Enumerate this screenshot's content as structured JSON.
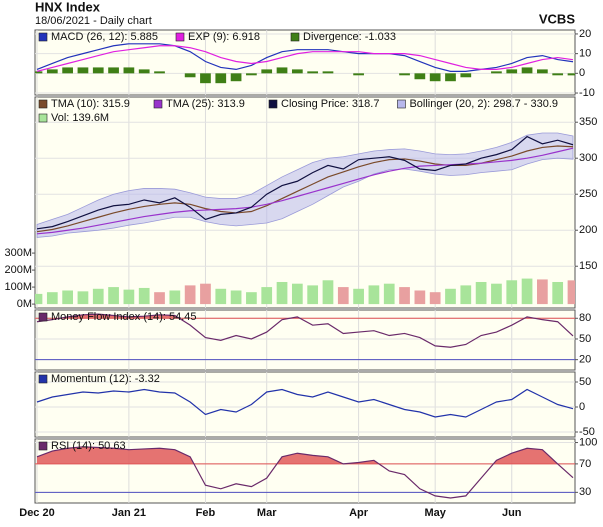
{
  "header": {
    "title": "HNX Index",
    "subtitle": "18/06/2021 - Daily chart",
    "source": "VCBS"
  },
  "chart_data": [
    {
      "type": "line",
      "ylim": [
        -11,
        22
      ],
      "yticks": [
        -10,
        0,
        10,
        20
      ],
      "series": [
        {
          "name": "MACD (26, 12): 5.885",
          "color": "#2233bb",
          "values": [
            2,
            5,
            8,
            10,
            12,
            14,
            15,
            15,
            15,
            14,
            11,
            6,
            3,
            2,
            4,
            8,
            11,
            12,
            12,
            12,
            11,
            10,
            10,
            10,
            9,
            6,
            3,
            1,
            1,
            2,
            3,
            5,
            8,
            9,
            7,
            5.885
          ]
        },
        {
          "name": "EXP (9): 6.918",
          "color": "#e020e0",
          "values": [
            1,
            3,
            5,
            7,
            9,
            11,
            12,
            13,
            14,
            14,
            13,
            11,
            8,
            6,
            5,
            6,
            8,
            10,
            11,
            11,
            11,
            11,
            10,
            10,
            10,
            9,
            7,
            5,
            3,
            2,
            2,
            3,
            5,
            7,
            8,
            6.918
          ]
        },
        {
          "name": "Divergence: -1.033",
          "color": "#3f7f16",
          "kind": "bar",
          "values": [
            1,
            2,
            3,
            3,
            3,
            3,
            3,
            2,
            1,
            0,
            -2,
            -5,
            -5,
            -4,
            -1,
            2,
            3,
            2,
            1,
            1,
            0,
            -1,
            0,
            0,
            -1,
            -3,
            -4,
            -4,
            -2,
            0,
            1,
            2,
            3,
            2,
            -1,
            -1.033
          ]
        }
      ]
    },
    {
      "type": "line",
      "ylim": [
        92,
        385
      ],
      "yticks": [
        150,
        200,
        250,
        300,
        350
      ],
      "y2lim": [
        -23,
        1218
      ],
      "y2ticks": [
        {
          "value": 0,
          "label": "0M"
        },
        {
          "value": 100,
          "label": "100M"
        },
        {
          "value": 200,
          "label": "200M"
        },
        {
          "value": 300,
          "label": "300M"
        }
      ],
      "series": [
        {
          "name": "TMA (10): 315.9",
          "color": "#7a4a2a",
          "values": [
            198,
            201,
            206,
            212,
            218,
            224,
            229,
            233,
            236,
            238,
            236,
            230,
            226,
            224,
            226,
            234,
            244,
            254,
            264,
            274,
            281,
            288,
            294,
            298,
            299,
            296,
            292,
            290,
            290,
            293,
            298,
            303,
            310,
            315,
            317,
            315.9
          ]
        },
        {
          "name": "TMA (25): 313.9",
          "color": "#9933cc",
          "values": [
            195,
            197,
            200,
            203,
            207,
            211,
            215,
            219,
            222,
            225,
            227,
            228,
            229,
            230,
            232,
            236,
            241,
            247,
            253,
            259,
            265,
            271,
            277,
            282,
            286,
            289,
            290,
            291,
            292,
            293,
            295,
            297,
            300,
            304,
            309,
            313.9
          ]
        },
        {
          "name": "Closing Price: 318.7",
          "color": "#101040",
          "values": [
            202,
            205,
            212,
            220,
            228,
            234,
            236,
            242,
            238,
            245,
            232,
            215,
            222,
            224,
            232,
            250,
            262,
            268,
            280,
            290,
            285,
            298,
            300,
            302,
            297,
            285,
            283,
            290,
            292,
            300,
            305,
            312,
            330,
            320,
            325,
            318.7
          ]
        },
        {
          "name": "Bollinger (20, 2): 298.7 - 330.9",
          "color": "#b8b8ec",
          "kind": "band",
          "upper": [
            208,
            215,
            222,
            232,
            242,
            250,
            255,
            258,
            258,
            257,
            252,
            246,
            244,
            244,
            250,
            262,
            274,
            284,
            294,
            300,
            302,
            306,
            310,
            312,
            313,
            310,
            306,
            305,
            306,
            310,
            315,
            322,
            332,
            335,
            335,
            330.9
          ],
          "lower": [
            190,
            192,
            196,
            198,
            200,
            203,
            207,
            210,
            214,
            218,
            218,
            212,
            208,
            206,
            208,
            210,
            216,
            226,
            236,
            248,
            260,
            268,
            278,
            284,
            285,
            282,
            278,
            276,
            277,
            280,
            282,
            284,
            292,
            298,
            300,
            298.7
          ]
        },
        {
          "name": "Vol: 139.6M",
          "color": "#a8e49a",
          "kind": "bar",
          "axis": "y2",
          "values": [
            60,
            70,
            80,
            75,
            90,
            100,
            85,
            95,
            70,
            80,
            110,
            120,
            90,
            80,
            70,
            100,
            130,
            120,
            110,
            140,
            100,
            90,
            110,
            120,
            100,
            80,
            70,
            90,
            110,
            130,
            120,
            140,
            150,
            145,
            130,
            139.6
          ],
          "colors": [
            "#a8e49a",
            "#a8e49a",
            "#a8e49a",
            "#a8e49a",
            "#a8e49a",
            "#a8e49a",
            "#a8e49a",
            "#a8e49a",
            "#e8a0a0",
            "#a8e49a",
            "#e8a0a0",
            "#e8a0a0",
            "#a8e49a",
            "#a8e49a",
            "#a8e49a",
            "#a8e49a",
            "#a8e49a",
            "#a8e49a",
            "#a8e49a",
            "#a8e49a",
            "#e8a0a0",
            "#a8e49a",
            "#a8e49a",
            "#a8e49a",
            "#e8a0a0",
            "#e8a0a0",
            "#e8a0a0",
            "#a8e49a",
            "#a8e49a",
            "#a8e49a",
            "#a8e49a",
            "#a8e49a",
            "#a8e49a",
            "#e8a0a0",
            "#a8e49a",
            "#e8a0a0"
          ]
        }
      ]
    },
    {
      "type": "line",
      "ylim": [
        5,
        92
      ],
      "yticks": [
        20,
        50,
        80
      ],
      "fill_above": 80,
      "fill_color": "#e05a5a",
      "ref_lines": [
        {
          "value": 80,
          "color": "#e05050"
        },
        {
          "value": 20,
          "color": "#5050c0"
        }
      ],
      "series": [
        {
          "name": "Money Flow Index (14): 54.45",
          "color": "#6a2a6a",
          "values": [
            75,
            78,
            82,
            85,
            86,
            84,
            82,
            83,
            85,
            84,
            70,
            52,
            48,
            55,
            50,
            60,
            78,
            82,
            70,
            72,
            58,
            60,
            62,
            55,
            58,
            52,
            40,
            38,
            42,
            55,
            60,
            70,
            82,
            78,
            75,
            54.45
          ]
        }
      ]
    },
    {
      "type": "line",
      "ylim": [
        -60,
        70
      ],
      "yticks": [
        -50,
        0,
        50
      ],
      "series": [
        {
          "name": "Momentum (12): -3.32",
          "color": "#2233aa",
          "values": [
            10,
            20,
            25,
            30,
            28,
            32,
            30,
            35,
            30,
            28,
            10,
            -15,
            -5,
            -10,
            5,
            30,
            35,
            25,
            20,
            30,
            20,
            10,
            15,
            5,
            -5,
            -10,
            -20,
            -15,
            -20,
            -5,
            10,
            15,
            35,
            20,
            5,
            -3.32
          ]
        }
      ]
    },
    {
      "type": "line",
      "ylim": [
        15,
        105
      ],
      "yticks": [
        30,
        70,
        100
      ],
      "fill_above": 70,
      "fill_color": "#e05a5a",
      "ref_lines": [
        {
          "value": 70,
          "color": "#e05050"
        },
        {
          "value": 30,
          "color": "#5050c0"
        }
      ],
      "categories": [
        "Dec 20",
        null,
        null,
        null,
        null,
        null,
        "Jan 21",
        null,
        null,
        null,
        null,
        "Feb",
        null,
        null,
        null,
        "Mar",
        null,
        null,
        null,
        null,
        null,
        "Apr",
        null,
        null,
        null,
        null,
        "May",
        null,
        null,
        null,
        null,
        "Jun",
        null,
        null,
        null,
        null
      ],
      "series": [
        {
          "name": "RSI (14): 50.63",
          "color": "#6a2a6a",
          "values": [
            80,
            88,
            92,
            94,
            93,
            92,
            90,
            91,
            92,
            90,
            80,
            40,
            35,
            42,
            38,
            50,
            80,
            85,
            82,
            80,
            70,
            72,
            75,
            60,
            55,
            35,
            25,
            22,
            25,
            50,
            75,
            85,
            92,
            90,
            70,
            50.63
          ]
        }
      ]
    }
  ]
}
